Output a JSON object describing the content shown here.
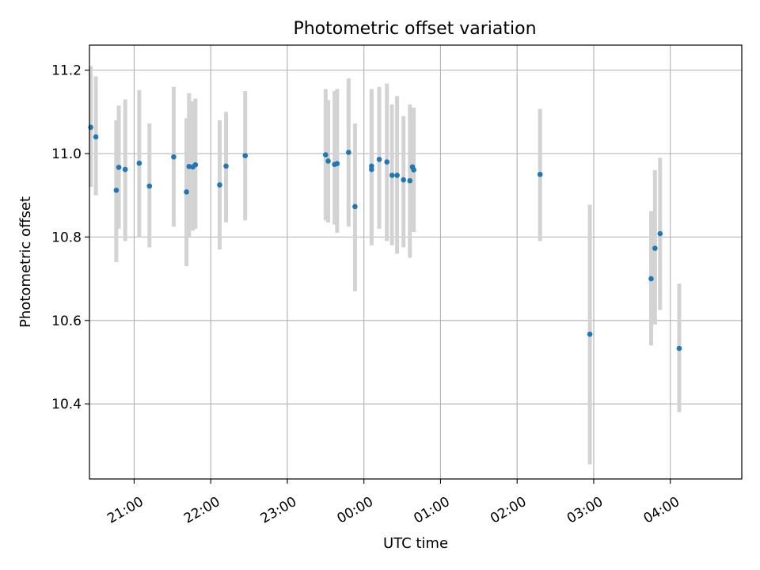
{
  "chart_data": {
    "type": "scatter",
    "title": "Photometric offset variation",
    "xlabel": "UTC time",
    "ylabel": "Photometric offset",
    "x_ticks": [
      "21:00",
      "22:00",
      "23:00",
      "00:00",
      "01:00",
      "02:00",
      "03:00",
      "04:00"
    ],
    "x_tick_hours": [
      21,
      22,
      23,
      24,
      25,
      26,
      27,
      28
    ],
    "y_ticks": [
      "10.4",
      "10.6",
      "10.8",
      "11.0",
      "11.2"
    ],
    "y_tick_values": [
      10.4,
      10.6,
      10.8,
      11.0,
      11.2
    ],
    "xlim": [
      "20:25",
      "04:56"
    ],
    "ylim": [
      10.22,
      11.26
    ],
    "grid": true,
    "colors": {
      "marker": "#1f77b4",
      "errorbar": "#d3d3d3",
      "grid": "#b0b0b0"
    },
    "points": [
      {
        "t": "20:26",
        "y": 11.063,
        "lo": 10.92,
        "hi": 11.21
      },
      {
        "t": "20:30",
        "y": 11.04,
        "lo": 10.9,
        "hi": 11.185
      },
      {
        "t": "20:46",
        "y": 10.912,
        "lo": 10.74,
        "hi": 11.08
      },
      {
        "t": "20:48",
        "y": 10.967,
        "lo": 10.82,
        "hi": 11.115
      },
      {
        "t": "20:53",
        "y": 10.962,
        "lo": 10.79,
        "hi": 11.13
      },
      {
        "t": "21:04",
        "y": 10.977,
        "lo": 10.8,
        "hi": 11.152
      },
      {
        "t": "21:12",
        "y": 10.922,
        "lo": 10.775,
        "hi": 11.072
      },
      {
        "t": "21:31",
        "y": 10.992,
        "lo": 10.825,
        "hi": 11.16
      },
      {
        "t": "21:41",
        "y": 10.908,
        "lo": 10.73,
        "hi": 11.085
      },
      {
        "t": "21:43",
        "y": 10.969,
        "lo": 10.8,
        "hi": 11.145
      },
      {
        "t": "21:46",
        "y": 10.968,
        "lo": 10.815,
        "hi": 11.125
      },
      {
        "t": "21:48",
        "y": 10.973,
        "lo": 10.82,
        "hi": 11.132
      },
      {
        "t": "22:07",
        "y": 10.925,
        "lo": 10.77,
        "hi": 11.08
      },
      {
        "t": "22:12",
        "y": 10.97,
        "lo": 10.835,
        "hi": 11.1
      },
      {
        "t": "22:27",
        "y": 10.995,
        "lo": 10.84,
        "hi": 11.15
      },
      {
        "t": "23:30",
        "y": 10.997,
        "lo": 10.84,
        "hi": 11.155
      },
      {
        "t": "23:32",
        "y": 10.982,
        "lo": 10.835,
        "hi": 11.128
      },
      {
        "t": "23:37",
        "y": 10.974,
        "lo": 10.83,
        "hi": 11.15
      },
      {
        "t": "23:39",
        "y": 10.976,
        "lo": 10.81,
        "hi": 11.155
      },
      {
        "t": "23:48",
        "y": 11.003,
        "lo": 10.825,
        "hi": 11.18
      },
      {
        "t": "23:53",
        "y": 10.873,
        "lo": 10.67,
        "hi": 11.072
      },
      {
        "t": "00:06",
        "y": 10.97,
        "lo": 10.78,
        "hi": 11.155
      },
      {
        "t": "00:06",
        "y": 10.962,
        "lo": 10.8,
        "hi": 11.15
      },
      {
        "t": "00:12",
        "y": 10.986,
        "lo": 10.82,
        "hi": 11.16
      },
      {
        "t": "00:18",
        "y": 10.98,
        "lo": 10.79,
        "hi": 11.168
      },
      {
        "t": "00:22",
        "y": 10.948,
        "lo": 10.78,
        "hi": 11.118
      },
      {
        "t": "00:26",
        "y": 10.948,
        "lo": 10.76,
        "hi": 11.138
      },
      {
        "t": "00:31",
        "y": 10.937,
        "lo": 10.775,
        "hi": 11.09
      },
      {
        "t": "00:36",
        "y": 10.935,
        "lo": 10.75,
        "hi": 11.118
      },
      {
        "t": "00:38",
        "y": 10.968,
        "lo": 10.83,
        "hi": 11.11
      },
      {
        "t": "00:39",
        "y": 10.961,
        "lo": 10.812,
        "hi": 11.11
      },
      {
        "t": "02:18",
        "y": 10.95,
        "lo": 10.79,
        "hi": 11.107
      },
      {
        "t": "02:57",
        "y": 10.567,
        "lo": 10.255,
        "hi": 10.877
      },
      {
        "t": "03:45",
        "y": 10.7,
        "lo": 10.54,
        "hi": 10.862
      },
      {
        "t": "03:48",
        "y": 10.773,
        "lo": 10.59,
        "hi": 10.96
      },
      {
        "t": "03:52",
        "y": 10.808,
        "lo": 10.625,
        "hi": 10.99
      },
      {
        "t": "04:07",
        "y": 10.533,
        "lo": 10.38,
        "hi": 10.688
      }
    ]
  }
}
